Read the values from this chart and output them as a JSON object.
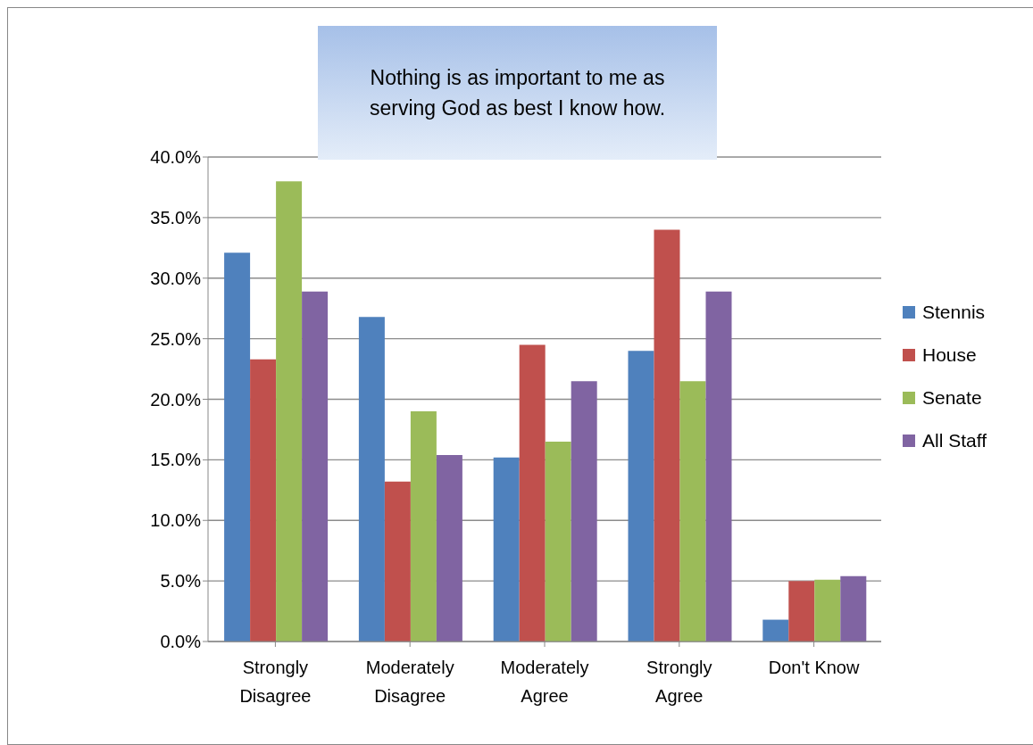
{
  "chart_data": {
    "type": "bar",
    "title": "Nothing is as important to me as serving God as best I know how.",
    "categories": [
      "Strongly Disagree",
      "Moderately Disagree",
      "Moderately Agree",
      "Strongly Agree",
      "Don't Know"
    ],
    "series": [
      {
        "name": "Stennis",
        "color": "#4f81bd",
        "values": [
          32.1,
          26.8,
          15.2,
          24.0,
          1.8
        ]
      },
      {
        "name": "House",
        "color": "#c0504d",
        "values": [
          23.3,
          13.2,
          24.5,
          34.0,
          5.0
        ]
      },
      {
        "name": "Senate",
        "color": "#9bbb59",
        "values": [
          38.0,
          19.0,
          16.5,
          21.5,
          5.1
        ]
      },
      {
        "name": "All Staff",
        "color": "#8064a2",
        "values": [
          28.9,
          15.4,
          21.5,
          28.9,
          5.4
        ]
      }
    ],
    "ylim": [
      0,
      40
    ],
    "yticks": [
      {
        "value": 0,
        "label": "0.0%"
      },
      {
        "value": 5,
        "label": "5.0%"
      },
      {
        "value": 10,
        "label": "10.0%"
      },
      {
        "value": 15,
        "label": "15.0%"
      },
      {
        "value": 20,
        "label": "20.0%"
      },
      {
        "value": 25,
        "label": "25.0%"
      },
      {
        "value": 30,
        "label": "30.0%"
      },
      {
        "value": 35,
        "label": "35.0%"
      },
      {
        "value": 40,
        "label": "40.0%"
      }
    ],
    "grid": "y",
    "legend": "right"
  }
}
